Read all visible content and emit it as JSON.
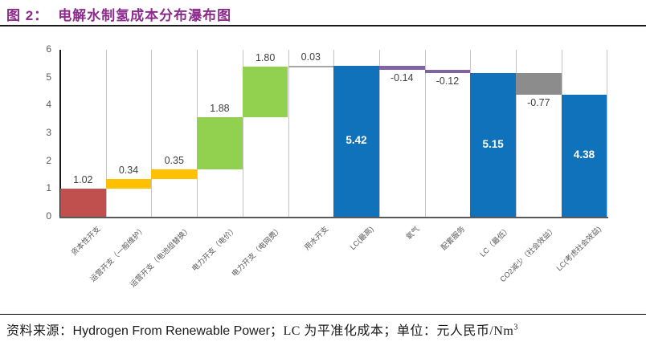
{
  "header": {
    "figure_label": "图 2：",
    "title": "电解水制氢成本分布瀑布图",
    "title_color": "#8B2B8B"
  },
  "chart_data": {
    "type": "bar",
    "subtype": "waterfall",
    "title": "电解水制氢成本分布瀑布图",
    "unit": "元人民币/Nm3",
    "ylim": [
      0,
      6
    ],
    "yticks": [
      0,
      1,
      2,
      3,
      4,
      5,
      6
    ],
    "grid": "vertical-column-separators",
    "legend": "none",
    "categories": [
      "资本性开支",
      "运营开支（一般维护）",
      "运营开支（电池组替换）",
      "电力开支（电价）",
      "电力开支（电网费）",
      "用水开支",
      "LC(最高)",
      "氧气",
      "配套服务",
      "LC（最低）",
      "CO2减少（社会效益）",
      "LC(考虑社会效益)"
    ],
    "bars": [
      {
        "category": "资本性开支",
        "label": "1.02",
        "value": 1.02,
        "base": 0,
        "color": "#C0504D",
        "label_pos": "above"
      },
      {
        "category": "运营开支（一般维护）",
        "label": "0.34",
        "value": 0.34,
        "base": 1.02,
        "color": "#FFC000",
        "label_pos": "above"
      },
      {
        "category": "运营开支（电池组替换）",
        "label": "0.35",
        "value": 0.35,
        "base": 1.36,
        "color": "#FFC000",
        "label_pos": "above"
      },
      {
        "category": "电力开支（电价）",
        "label": "1.88",
        "value": 1.88,
        "base": 1.71,
        "color": "#92D050",
        "label_pos": "above"
      },
      {
        "category": "电力开支（电网费）",
        "label": "1.80",
        "value": 1.8,
        "base": 3.59,
        "color": "#92D050",
        "label_pos": "above"
      },
      {
        "category": "用水开支",
        "label": "0.03",
        "value": 0.03,
        "base": 5.39,
        "color": "#A6A6A6",
        "label_pos": "above"
      },
      {
        "category": "LC(最高)",
        "label": "5.42",
        "value": 5.42,
        "base": 0,
        "color": "#1072BA",
        "label_pos": "inside"
      },
      {
        "category": "氧气",
        "label": "-0.14",
        "value": -0.14,
        "base": 5.42,
        "color": "#8064A2",
        "label_pos": "below"
      },
      {
        "category": "配套服务",
        "label": "-0.12",
        "value": -0.12,
        "base": 5.28,
        "color": "#8064A2",
        "label_pos": "below"
      },
      {
        "category": "LC（最低）",
        "label": "5.15",
        "value": 5.15,
        "base": 0,
        "color": "#1072BA",
        "label_pos": "inside"
      },
      {
        "category": "CO2减少（社会效益）",
        "label": "-0.77",
        "value": -0.77,
        "base": 5.15,
        "color": "#8C8C8C",
        "label_pos": "below"
      },
      {
        "category": "LC(考虑社会效益)",
        "label": "4.38",
        "value": 4.38,
        "base": 0,
        "color": "#1072BA",
        "label_pos": "inside"
      }
    ]
  },
  "colors": {
    "axis": "#1A1A1A",
    "baseline": "#595959",
    "separator": "#C6C6C6",
    "tick_text": "#595959",
    "label_text": "#404040",
    "inside_label_text": "#FFFFFF"
  },
  "footer": {
    "source_label": "资料来源：",
    "source_en": "Hydrogen From Renewable Power",
    "notes": "；LC 为平准化成本；单位：元人民币/Nm",
    "unit_superscript": "3"
  }
}
